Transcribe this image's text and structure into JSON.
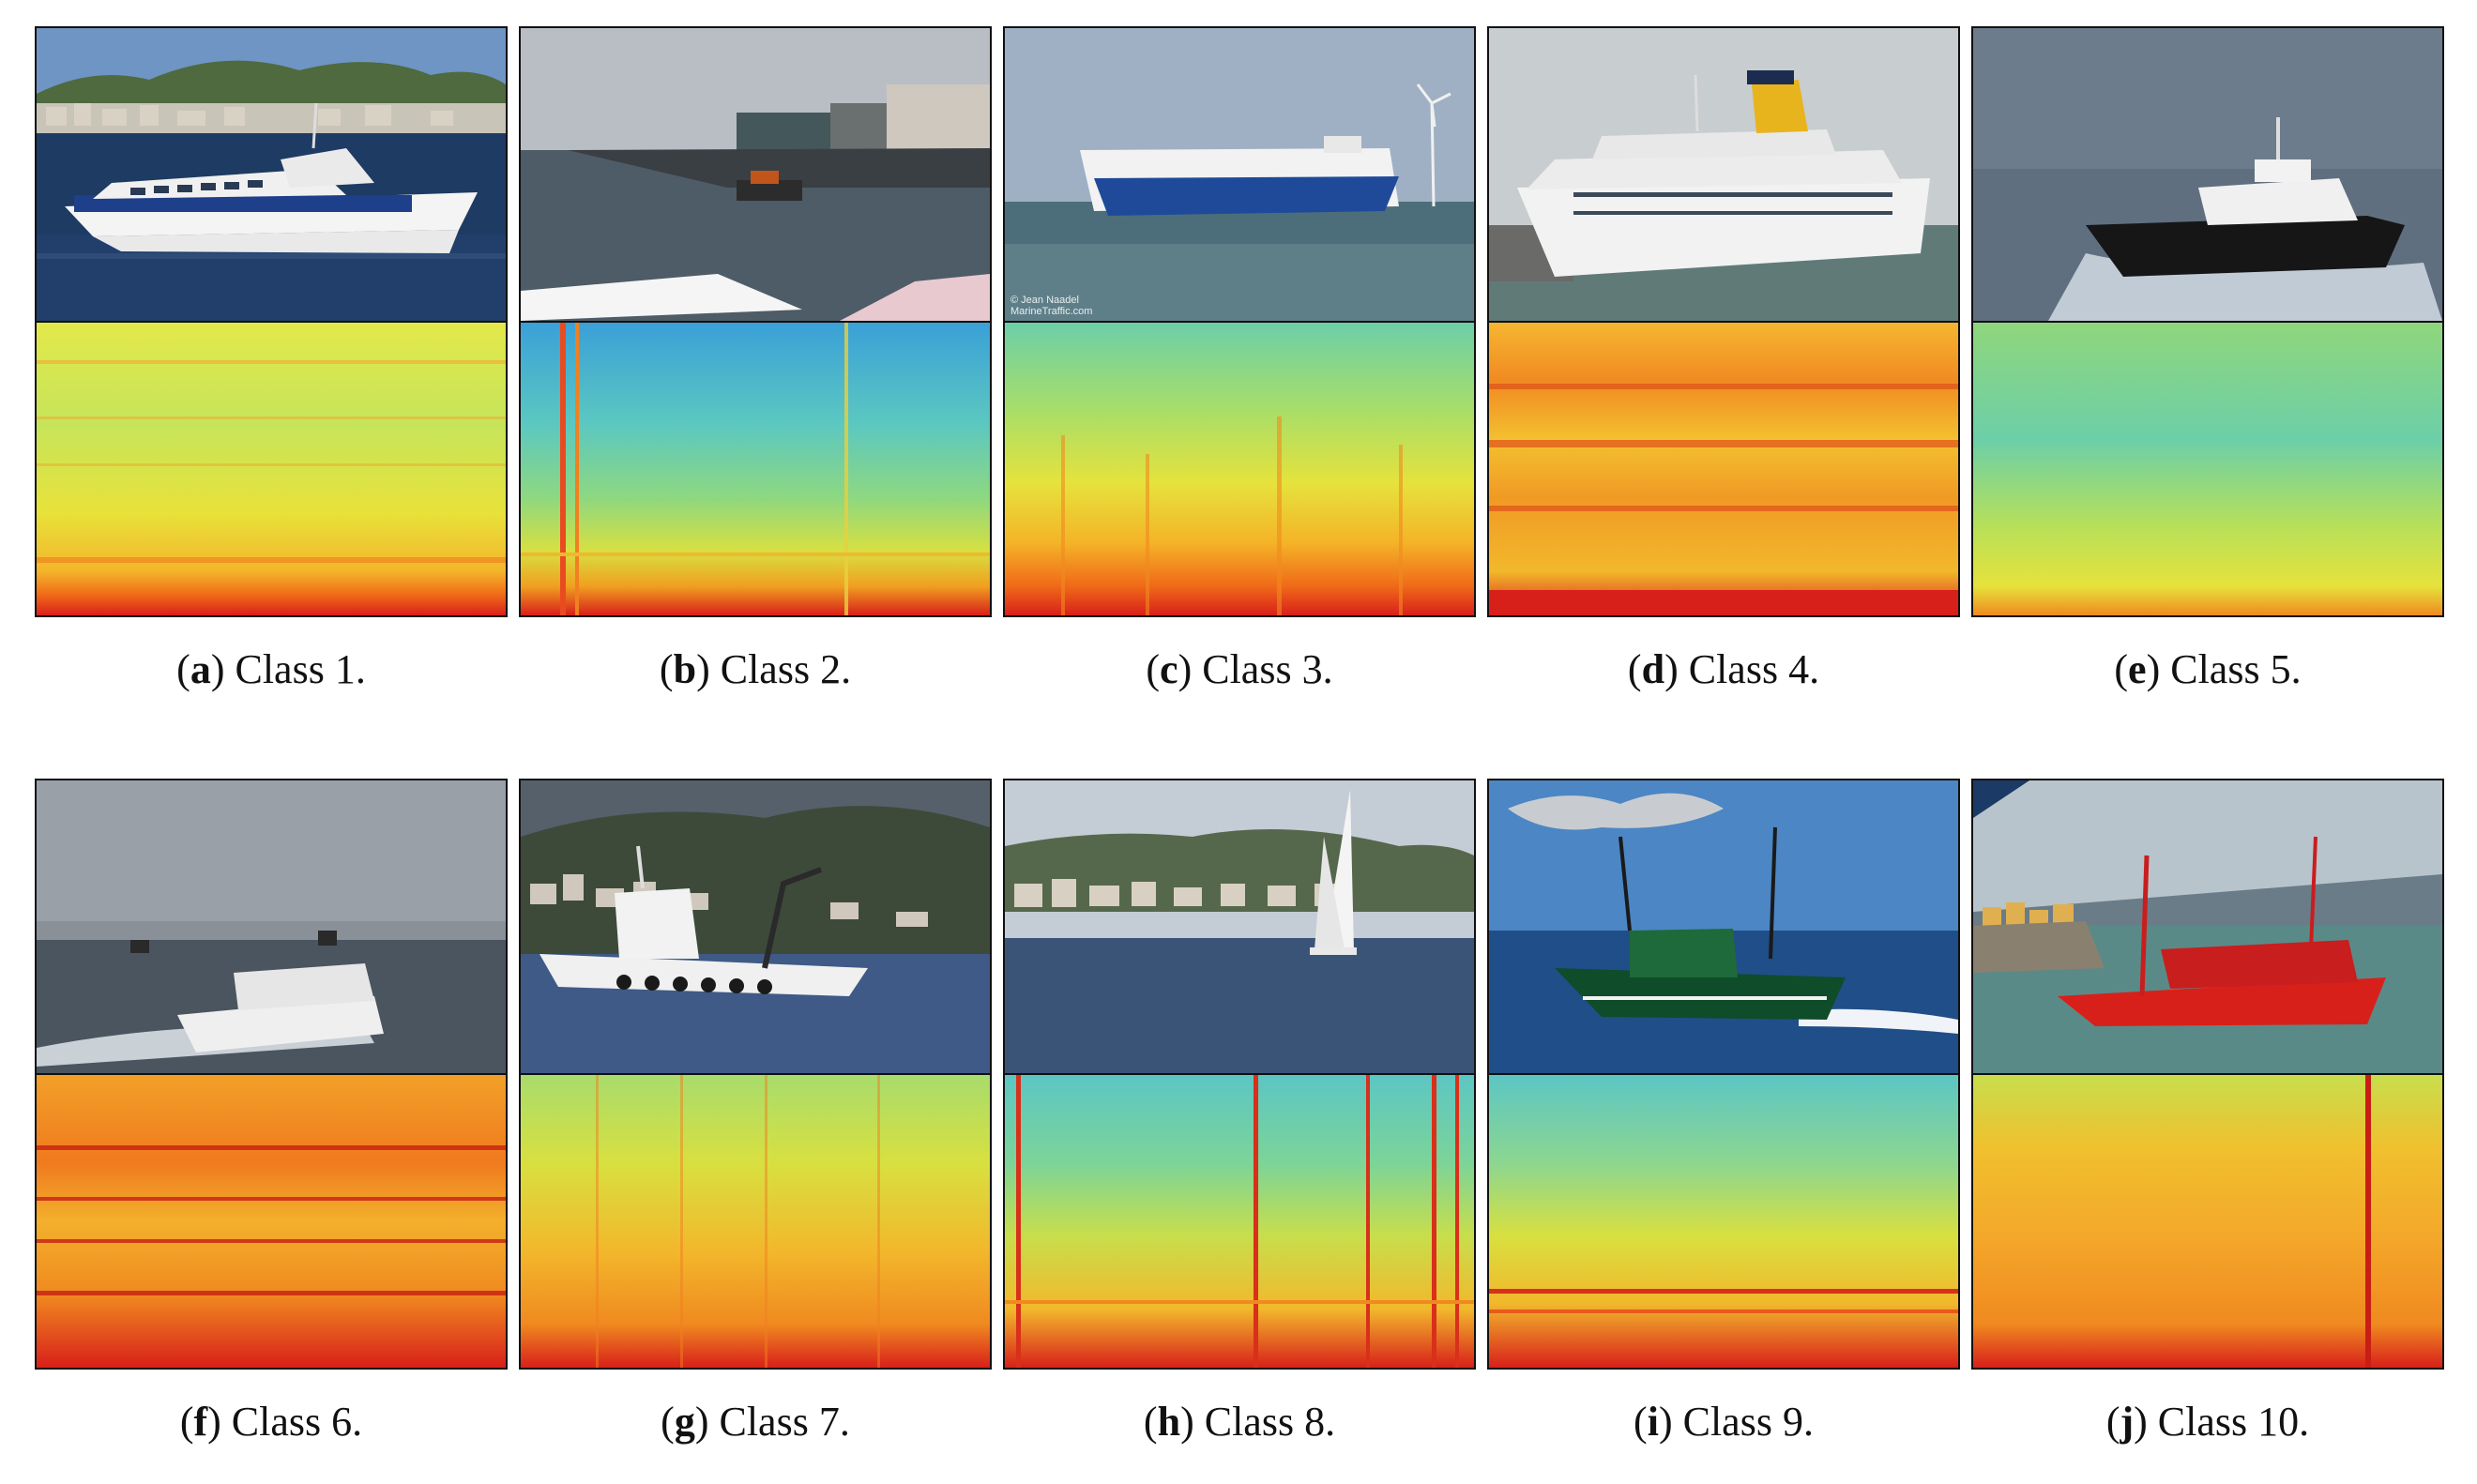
{
  "figure": {
    "panels": [
      {
        "letter": "a",
        "label": "Class 1.",
        "photo_icon": "ferry-catamaran-photo",
        "spectrogram_icon": "spectrogram-class-1"
      },
      {
        "letter": "b",
        "label": "Class 2.",
        "photo_icon": "small-boat-harbor-photo",
        "spectrogram_icon": "spectrogram-class-2"
      },
      {
        "letter": "c",
        "label": "Class 3.",
        "photo_icon": "ro-ro-cargo-ship-photo",
        "spectrogram_icon": "spectrogram-class-3"
      },
      {
        "letter": "d",
        "label": "Class 4.",
        "photo_icon": "cruise-ship-photo",
        "spectrogram_icon": "spectrogram-class-4"
      },
      {
        "letter": "e",
        "label": "Class 5.",
        "photo_icon": "pilot-boat-photo",
        "spectrogram_icon": "spectrogram-class-5"
      },
      {
        "letter": "f",
        "label": "Class 6.",
        "photo_icon": "motorboat-photo",
        "spectrogram_icon": "spectrogram-class-6"
      },
      {
        "letter": "g",
        "label": "Class 7.",
        "photo_icon": "mussel-boat-crane-photo",
        "spectrogram_icon": "spectrogram-class-7"
      },
      {
        "letter": "h",
        "label": "Class 8.",
        "photo_icon": "sailboat-photo",
        "spectrogram_icon": "spectrogram-class-8"
      },
      {
        "letter": "i",
        "label": "Class 9.",
        "photo_icon": "green-trawler-photo",
        "spectrogram_icon": "spectrogram-class-9"
      },
      {
        "letter": "j",
        "label": "Class 10.",
        "photo_icon": "red-trawler-photo",
        "spectrogram_icon": "spectrogram-class-10"
      }
    ],
    "photo_watermark": {
      "line1": "© Jean Naadel",
      "line2": "MarineTraffic.com"
    }
  }
}
